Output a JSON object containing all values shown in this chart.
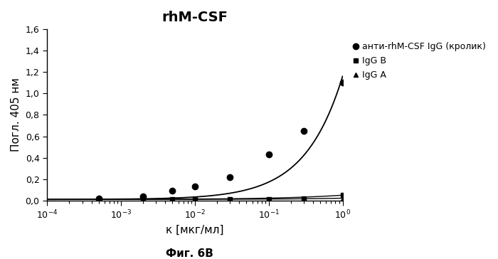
{
  "title": "rhM-CSF",
  "xlabel": "к [мкг/мл]",
  "ylabel": "Погл. 405 нм",
  "caption": "Фиг. 6В",
  "xlim_log": [
    -4,
    0
  ],
  "ylim": [
    0.0,
    1.6
  ],
  "yticks": [
    0.0,
    0.2,
    0.4,
    0.6,
    0.8,
    1.0,
    1.2,
    1.4,
    1.6
  ],
  "series1_name": "анти-rhM-CSF IgG (кролик)",
  "series1_x": [
    0.0005,
    0.002,
    0.005,
    0.01,
    0.03,
    0.1,
    0.3,
    1.0
  ],
  "series1_y": [
    0.02,
    0.04,
    0.09,
    0.13,
    0.22,
    0.43,
    0.65,
    1.1
  ],
  "series1_color": "#000000",
  "series1_marker": "o",
  "series1_markersize": 6,
  "series2_name": "IgG B",
  "series2_x": [
    0.0005,
    0.002,
    0.005,
    0.01,
    0.03,
    0.1,
    0.3,
    1.0
  ],
  "series2_y": [
    0.01,
    0.01,
    0.01,
    0.01,
    0.01,
    0.01,
    0.02,
    0.05
  ],
  "series2_color": "#000000",
  "series2_marker": "s",
  "series2_markersize": 4,
  "series3_name": "IgG A",
  "series3_x": [
    0.0005,
    0.002,
    0.005,
    0.01,
    0.03,
    0.1,
    0.3,
    1.0
  ],
  "series3_y": [
    0.01,
    0.01,
    0.01,
    0.01,
    0.01,
    0.01,
    0.01,
    0.02
  ],
  "series3_color": "#000000",
  "series3_marker": "^",
  "series3_markersize": 5,
  "line_color": "#000000",
  "background_color": "#ffffff",
  "title_fontsize": 14,
  "label_fontsize": 11,
  "tick_fontsize": 9,
  "legend_fontsize": 9,
  "fig_width": 7.0,
  "fig_height": 3.64,
  "dpi": 100
}
